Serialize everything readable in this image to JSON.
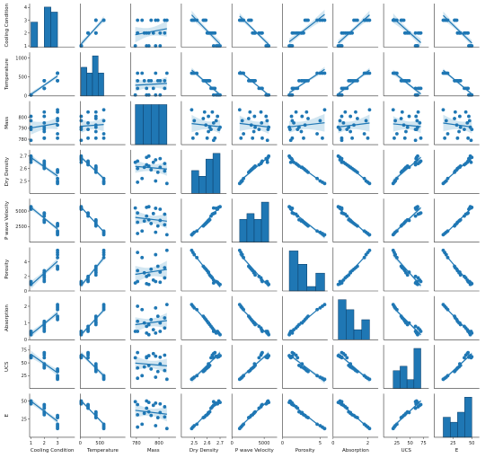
{
  "colors": {
    "primary": "#1f77b4",
    "band": "#a6cee3",
    "axis": "#333333"
  },
  "chart_data": {
    "type": "pairplot",
    "grid": false,
    "variables": [
      "Cooling Condition",
      "Temperature",
      "Mass",
      "Dry Density",
      "P wave Velocity",
      "Porosity",
      "Absorption",
      "UCS",
      "E"
    ],
    "ranges": [
      [
        0.9,
        4.3
      ],
      [
        0,
        1150
      ],
      [
        775,
        815
      ],
      [
        2.4,
        2.75
      ],
      [
        0,
        7000
      ],
      [
        0,
        6
      ],
      [
        0,
        2.6
      ],
      [
        0,
        85
      ],
      [
        0,
        60
      ]
    ],
    "ticks": [
      [
        {
          "v": 1,
          "t": "1"
        },
        {
          "v": 2,
          "t": "2"
        },
        {
          "v": 3,
          "t": "3"
        }
      ],
      [
        {
          "v": 0,
          "t": "0"
        },
        {
          "v": 500,
          "t": "500"
        }
      ],
      [
        {
          "v": 780,
          "t": "780"
        },
        {
          "v": 800,
          "t": "800"
        }
      ],
      [
        {
          "v": 2.5,
          "t": "2.5"
        },
        {
          "v": 2.6,
          "t": "2.6"
        },
        {
          "v": 2.7,
          "t": "2.7"
        }
      ],
      [
        {
          "v": 0,
          "t": "0"
        },
        {
          "v": 5000,
          "t": "5000"
        }
      ],
      [
        {
          "v": 0,
          "t": "0"
        },
        {
          "v": 5,
          "t": "5"
        }
      ],
      [
        {
          "v": 0,
          "t": "0"
        },
        {
          "v": 2,
          "t": "2"
        }
      ],
      [
        {
          "v": 25,
          "t": "25"
        },
        {
          "v": 50,
          "t": "50"
        },
        {
          "v": 75,
          "t": "75"
        }
      ],
      [
        {
          "v": 25,
          "t": "25"
        },
        {
          "v": 50,
          "t": "50"
        }
      ]
    ],
    "yticks": [
      [
        {
          "v": 1,
          "t": "1"
        },
        {
          "v": 2,
          "t": "2"
        },
        {
          "v": 3,
          "t": "3"
        },
        {
          "v": 4,
          "t": "4"
        }
      ],
      [
        {
          "v": 0,
          "t": "0"
        },
        {
          "v": 500,
          "t": "500"
        },
        {
          "v": 1000,
          "t": "1000"
        }
      ],
      [
        {
          "v": 780,
          "t": "780"
        },
        {
          "v": 790,
          "t": "790"
        },
        {
          "v": 800,
          "t": "800"
        }
      ],
      [
        {
          "v": 2.5,
          "t": "2.5"
        },
        {
          "v": 2.6,
          "t": "2.6"
        },
        {
          "v": 2.7,
          "t": "2.7"
        }
      ],
      [
        {
          "v": 2500,
          "t": "2500"
        },
        {
          "v": 5000,
          "t": "5000"
        }
      ],
      [
        {
          "v": 0,
          "t": "0"
        },
        {
          "v": 2,
          "t": "2"
        },
        {
          "v": 4,
          "t": "4"
        }
      ],
      [
        {
          "v": 0,
          "t": "0"
        },
        {
          "v": 1,
          "t": "1"
        },
        {
          "v": 2,
          "t": "2"
        }
      ],
      [
        {
          "v": 25,
          "t": "25"
        },
        {
          "v": 50,
          "t": "50"
        },
        {
          "v": 75,
          "t": "75"
        }
      ],
      [
        {
          "v": 25,
          "t": "25"
        },
        {
          "v": 50,
          "t": "50"
        }
      ]
    ],
    "observations": [
      [
        1,
        25,
        789,
        2.69,
        5600,
        1.0,
        0.4,
        62,
        50
      ],
      [
        1,
        25,
        791,
        2.7,
        5700,
        0.9,
        0.3,
        64,
        48
      ],
      [
        1,
        25,
        779,
        2.65,
        5500,
        1.1,
        0.5,
        60,
        49
      ],
      [
        1,
        25,
        801,
        2.68,
        5300,
        1.2,
        0.5,
        61,
        46
      ],
      [
        1,
        25,
        797,
        2.67,
        5450,
        1.3,
        0.4,
        63,
        47
      ],
      [
        2,
        200,
        781,
        2.66,
        4700,
        1.3,
        0.5,
        70,
        45
      ],
      [
        2,
        200,
        795,
        2.65,
        4600,
        1.5,
        0.6,
        68,
        44
      ],
      [
        2,
        200,
        805,
        2.64,
        4500,
        1.8,
        0.7,
        65,
        42
      ],
      [
        2,
        200,
        789,
        2.63,
        4200,
        2.0,
        0.8,
        60,
        40
      ],
      [
        2,
        400,
        791,
        2.62,
        3600,
        2.2,
        0.9,
        45,
        35
      ],
      [
        2,
        400,
        787,
        2.61,
        3400,
        2.5,
        1.0,
        42,
        33
      ],
      [
        2,
        400,
        781,
        2.6,
        3200,
        2.8,
        1.1,
        40,
        31
      ],
      [
        3,
        400,
        793,
        2.59,
        3000,
        3.0,
        1.2,
        38,
        30
      ],
      [
        3,
        400,
        805,
        2.58,
        2800,
        3.2,
        1.3,
        35,
        28
      ],
      [
        3,
        400,
        799,
        2.57,
        2600,
        3.4,
        1.4,
        33,
        27
      ],
      [
        3,
        600,
        785,
        2.52,
        1800,
        4.6,
        1.8,
        25,
        18
      ],
      [
        3,
        600,
        797,
        2.5,
        1600,
        5.0,
        1.9,
        22,
        16
      ],
      [
        3,
        600,
        781,
        2.49,
        1400,
        5.3,
        2.0,
        20,
        14
      ],
      [
        3,
        600,
        807,
        2.48,
        1200,
        5.6,
        2.1,
        18,
        12
      ],
      [
        2,
        400,
        801,
        2.61,
        3500,
        2.6,
        1.0,
        48,
        34
      ]
    ]
  }
}
